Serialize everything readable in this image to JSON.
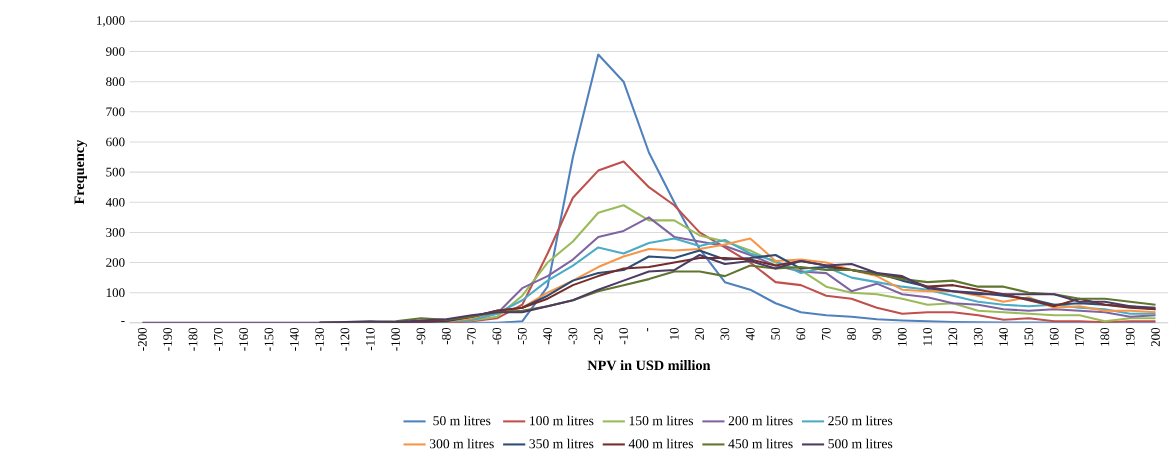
{
  "chart_data": {
    "type": "line",
    "xlabel": "NPV in USD million",
    "ylabel": "Frequency",
    "categories": [
      "-200",
      "-190",
      "-180",
      "-170",
      "-160",
      "-150",
      "-140",
      "-130",
      "-120",
      "-110",
      "-100",
      "-90",
      "-80",
      "-70",
      "-60",
      "-50",
      "-40",
      "-30",
      "-20",
      "-10",
      "-",
      "10",
      "20",
      "30",
      "40",
      "50",
      "60",
      "70",
      "80",
      "90",
      "100",
      "110",
      "120",
      "130",
      "140",
      "150",
      "160",
      "170",
      "180",
      "190",
      "200"
    ],
    "ylim": [
      0,
      1000
    ],
    "yticks": [
      {
        "value": 0,
        "label": "-"
      },
      100,
      200,
      300,
      400,
      500,
      600,
      700,
      800,
      900,
      {
        "value": 1000,
        "label": "1,000"
      }
    ],
    "grid": "y",
    "legend": "bottom",
    "marker": "none",
    "line_style": "solid",
    "series": [
      {
        "name": "50 m litres",
        "color": "#4f81bd",
        "values": [
          null,
          null,
          null,
          null,
          null,
          null,
          null,
          0,
          0,
          0,
          0,
          0,
          0,
          0,
          0,
          5,
          120,
          550,
          890,
          800,
          565,
          400,
          245,
          135,
          110,
          65,
          35,
          25,
          20,
          12,
          8,
          5,
          3,
          2,
          1,
          1,
          1,
          1,
          1,
          1,
          1
        ]
      },
      {
        "name": "100 m litres",
        "color": "#c0504d",
        "values": [
          null,
          null,
          null,
          null,
          null,
          null,
          null,
          null,
          null,
          null,
          null,
          0,
          0,
          5,
          15,
          60,
          230,
          415,
          505,
          535,
          450,
          390,
          300,
          250,
          200,
          135,
          125,
          90,
          80,
          50,
          30,
          35,
          35,
          25,
          10,
          15,
          5,
          5,
          2,
          5,
          5
        ]
      },
      {
        "name": "150 m litres",
        "color": "#9bbb59",
        "values": [
          null,
          null,
          null,
          null,
          null,
          null,
          null,
          null,
          null,
          0,
          2,
          3,
          5,
          8,
          20,
          90,
          200,
          270,
          365,
          390,
          340,
          340,
          290,
          270,
          240,
          200,
          175,
          120,
          100,
          95,
          80,
          60,
          65,
          40,
          35,
          30,
          25,
          25,
          5,
          15,
          15
        ]
      },
      {
        "name": "200 m litres",
        "color": "#8064a2",
        "values": [
          null,
          null,
          null,
          null,
          null,
          null,
          null,
          0,
          0,
          0,
          0,
          2,
          5,
          10,
          30,
          115,
          155,
          210,
          285,
          305,
          350,
          285,
          270,
          255,
          225,
          190,
          170,
          165,
          105,
          130,
          95,
          85,
          65,
          60,
          45,
          40,
          45,
          40,
          35,
          20,
          25
        ]
      },
      {
        "name": "250 m litres",
        "color": "#4bacc6",
        "values": [
          null,
          null,
          null,
          null,
          null,
          null,
          null,
          null,
          null,
          null,
          null,
          2,
          5,
          10,
          30,
          75,
          140,
          190,
          250,
          230,
          265,
          280,
          255,
          275,
          230,
          205,
          165,
          185,
          150,
          135,
          120,
          110,
          90,
          70,
          60,
          55,
          60,
          50,
          45,
          30,
          30
        ]
      },
      {
        "name": "300 m litres",
        "color": "#f79646",
        "values": [
          null,
          null,
          null,
          null,
          null,
          null,
          null,
          null,
          null,
          null,
          null,
          null,
          5,
          15,
          40,
          50,
          100,
          140,
          185,
          220,
          245,
          240,
          245,
          260,
          280,
          205,
          210,
          200,
          175,
          155,
          110,
          105,
          105,
          90,
          70,
          85,
          50,
          55,
          40,
          40,
          35
        ]
      },
      {
        "name": "350 m litres",
        "color": "#2c4d75",
        "values": [
          null,
          null,
          null,
          null,
          null,
          null,
          null,
          0,
          0,
          0,
          0,
          2,
          5,
          20,
          40,
          50,
          90,
          140,
          165,
          175,
          220,
          215,
          240,
          210,
          215,
          225,
          180,
          185,
          175,
          165,
          140,
          120,
          105,
          100,
          90,
          80,
          60,
          65,
          60,
          55,
          45
        ]
      },
      {
        "name": "400 m litres",
        "color": "#772c2a",
        "values": [
          null,
          null,
          null,
          null,
          null,
          null,
          null,
          0,
          0,
          0,
          0,
          3,
          8,
          20,
          40,
          50,
          80,
          125,
          155,
          180,
          185,
          200,
          215,
          215,
          210,
          190,
          205,
          190,
          175,
          160,
          150,
          120,
          125,
          110,
          95,
          75,
          55,
          80,
          60,
          50,
          45
        ]
      },
      {
        "name": "450 m litres",
        "color": "#5f7530",
        "values": [
          null,
          null,
          null,
          null,
          null,
          null,
          null,
          0,
          0,
          2,
          5,
          15,
          10,
          20,
          35,
          40,
          55,
          75,
          105,
          125,
          145,
          170,
          170,
          155,
          190,
          180,
          185,
          175,
          175,
          160,
          145,
          135,
          140,
          120,
          120,
          100,
          95,
          80,
          80,
          70,
          60
        ]
      },
      {
        "name": "500 m litres",
        "color": "#4d3b62",
        "values": [
          0,
          0,
          0,
          0,
          0,
          0,
          0,
          0,
          3,
          5,
          3,
          8,
          12,
          25,
          35,
          35,
          55,
          75,
          110,
          140,
          170,
          175,
          225,
          195,
          205,
          180,
          205,
          190,
          195,
          165,
          155,
          115,
          105,
          95,
          95,
          95,
          95,
          70,
          70,
          55,
          50
        ]
      }
    ]
  }
}
